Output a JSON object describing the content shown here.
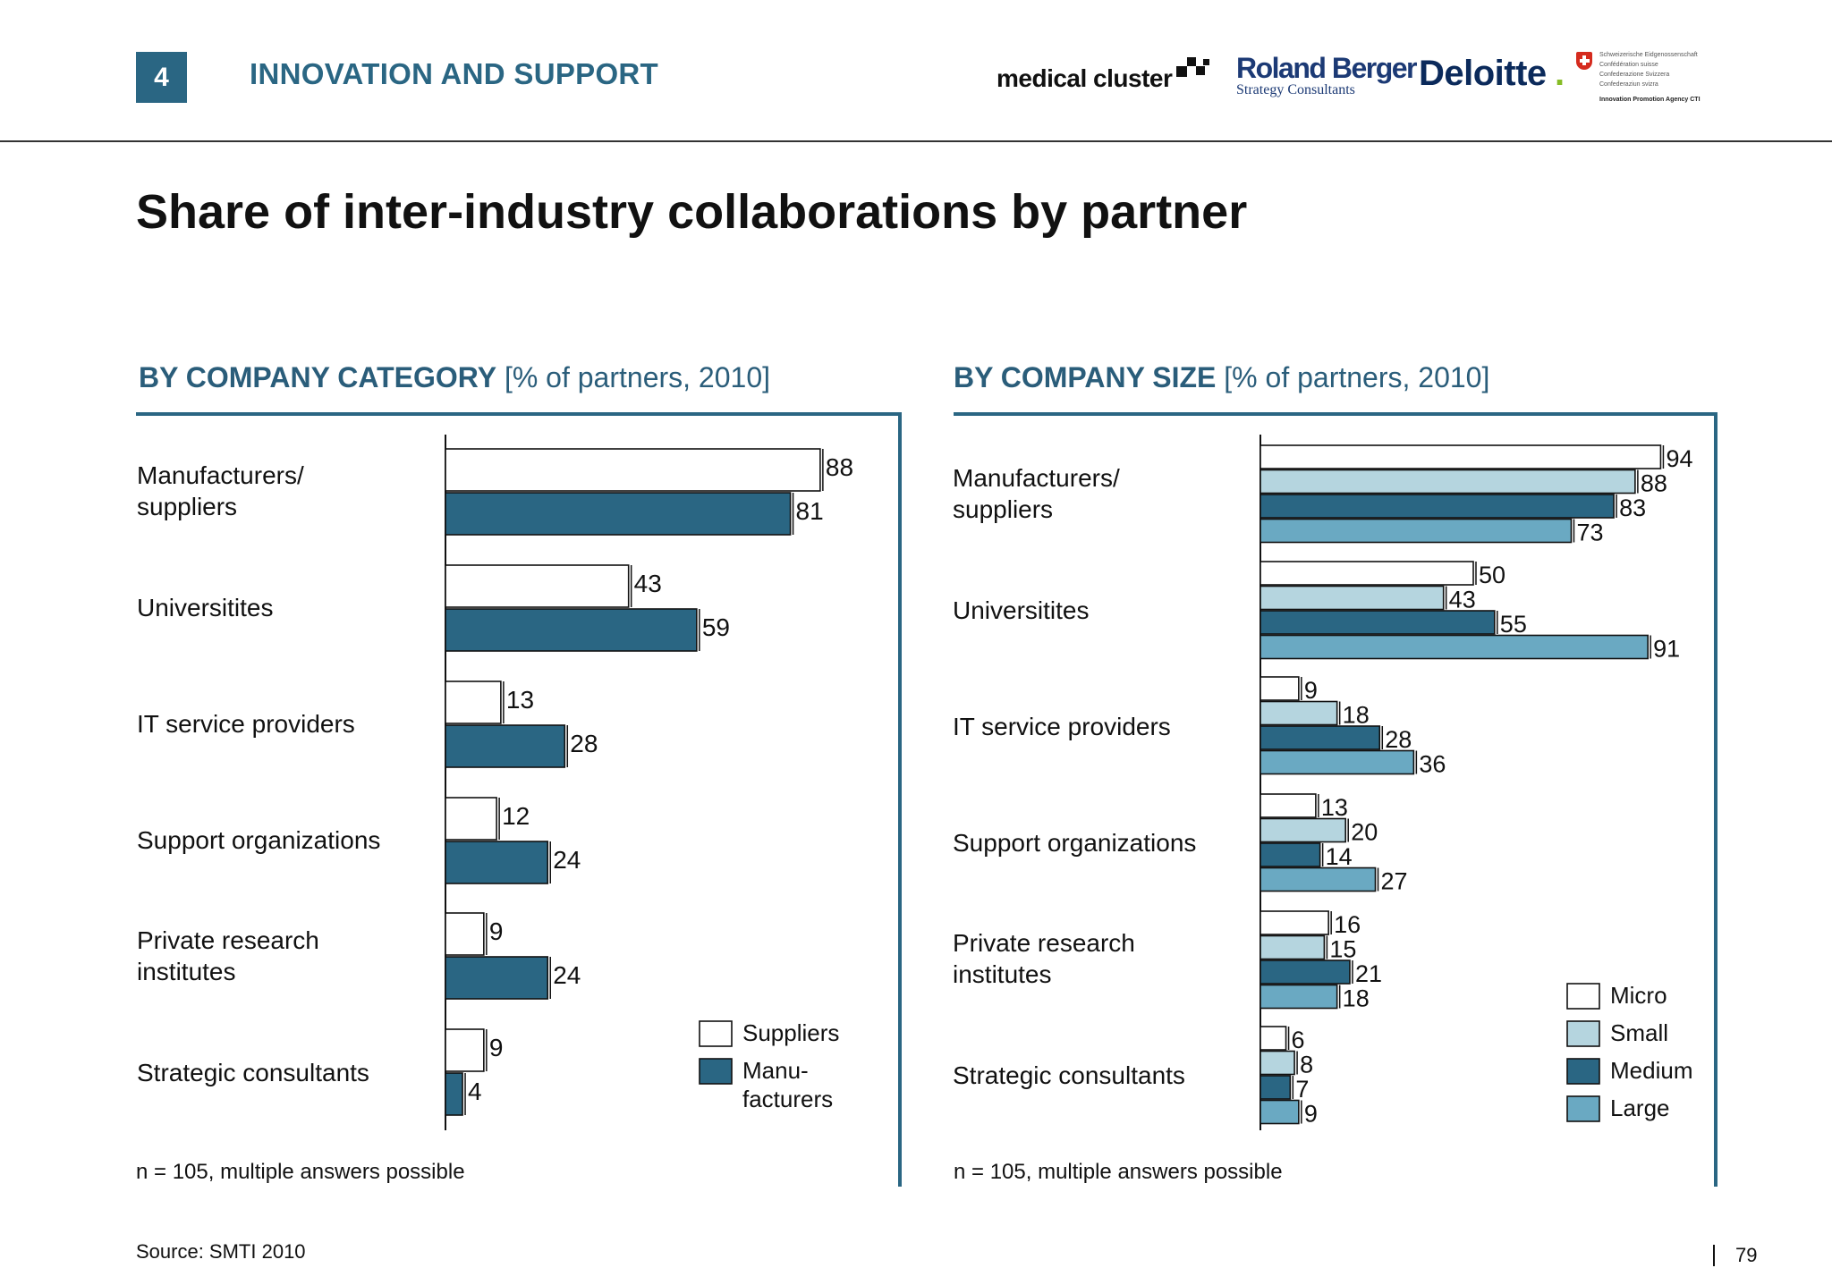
{
  "header": {
    "section_number": "4",
    "section_title": "INNOVATION AND SUPPORT",
    "logos": {
      "medical_cluster": "medical cluster",
      "roland_berger": "Roland Berger",
      "roland_berger_sub": "Strategy Consultants",
      "deloitte": "Deloitte",
      "deloitte_dot": ".",
      "swiss_lines": [
        "Schweizerische Eidgenossenschaft",
        "Confédération suisse",
        "Confederazione Svizzera",
        "Confederaziun svizra"
      ],
      "swiss_agency": "Innovation Promotion Agency CTI"
    }
  },
  "title": "Share of inter-industry collaborations by partner",
  "left_panel": {
    "heading_bold": "BY COMPANY CATEGORY",
    "heading_rest": " [% of partners, 2010]",
    "note": "n = 105, multiple answers possible"
  },
  "right_panel": {
    "heading_bold": "BY COMPANY SIZE",
    "heading_rest": " [% of partners, 2010]",
    "note": "n = 105, multiple answers possible"
  },
  "categories": [
    "Manufacturers/\nsuppliers",
    "Universitites",
    "IT service providers",
    "Support organizations",
    "Private research\ninstitutes",
    "Strategic consultants"
  ],
  "chart_data": [
    {
      "type": "bar",
      "orientation": "horizontal",
      "categories": [
        "Manufacturers/ suppliers",
        "Universitites",
        "IT service providers",
        "Support organizations",
        "Private research institutes",
        "Strategic consultants"
      ],
      "series": [
        {
          "name": "Suppliers",
          "values": [
            88,
            43,
            13,
            12,
            9,
            9
          ],
          "color": "#ffffff"
        },
        {
          "name": "Manu-\nfacturers",
          "values": [
            81,
            59,
            28,
            24,
            24,
            4
          ],
          "color": "#2a6683"
        }
      ],
      "xlim": [
        0,
        100
      ],
      "legend_position": "bottom-right",
      "grid": false
    },
    {
      "type": "bar",
      "orientation": "horizontal",
      "categories": [
        "Manufacturers/ suppliers",
        "Universitites",
        "IT service providers",
        "Support organizations",
        "Private research institutes",
        "Strategic consultants"
      ],
      "series": [
        {
          "name": "Micro",
          "values": [
            94,
            50,
            9,
            13,
            16,
            6
          ],
          "color": "#ffffff"
        },
        {
          "name": "Small",
          "values": [
            88,
            43,
            18,
            20,
            15,
            8
          ],
          "color": "#b5d5df"
        },
        {
          "name": "Medium",
          "values": [
            83,
            55,
            28,
            14,
            21,
            7
          ],
          "color": "#2a6683"
        },
        {
          "name": "Large",
          "values": [
            73,
            91,
            36,
            27,
            18,
            9
          ],
          "color": "#6aa9c2"
        }
      ],
      "xlim": [
        0,
        100
      ],
      "legend_position": "bottom-right",
      "grid": false
    }
  ],
  "source": "Source:  SMTI 2010",
  "page_number": "79"
}
